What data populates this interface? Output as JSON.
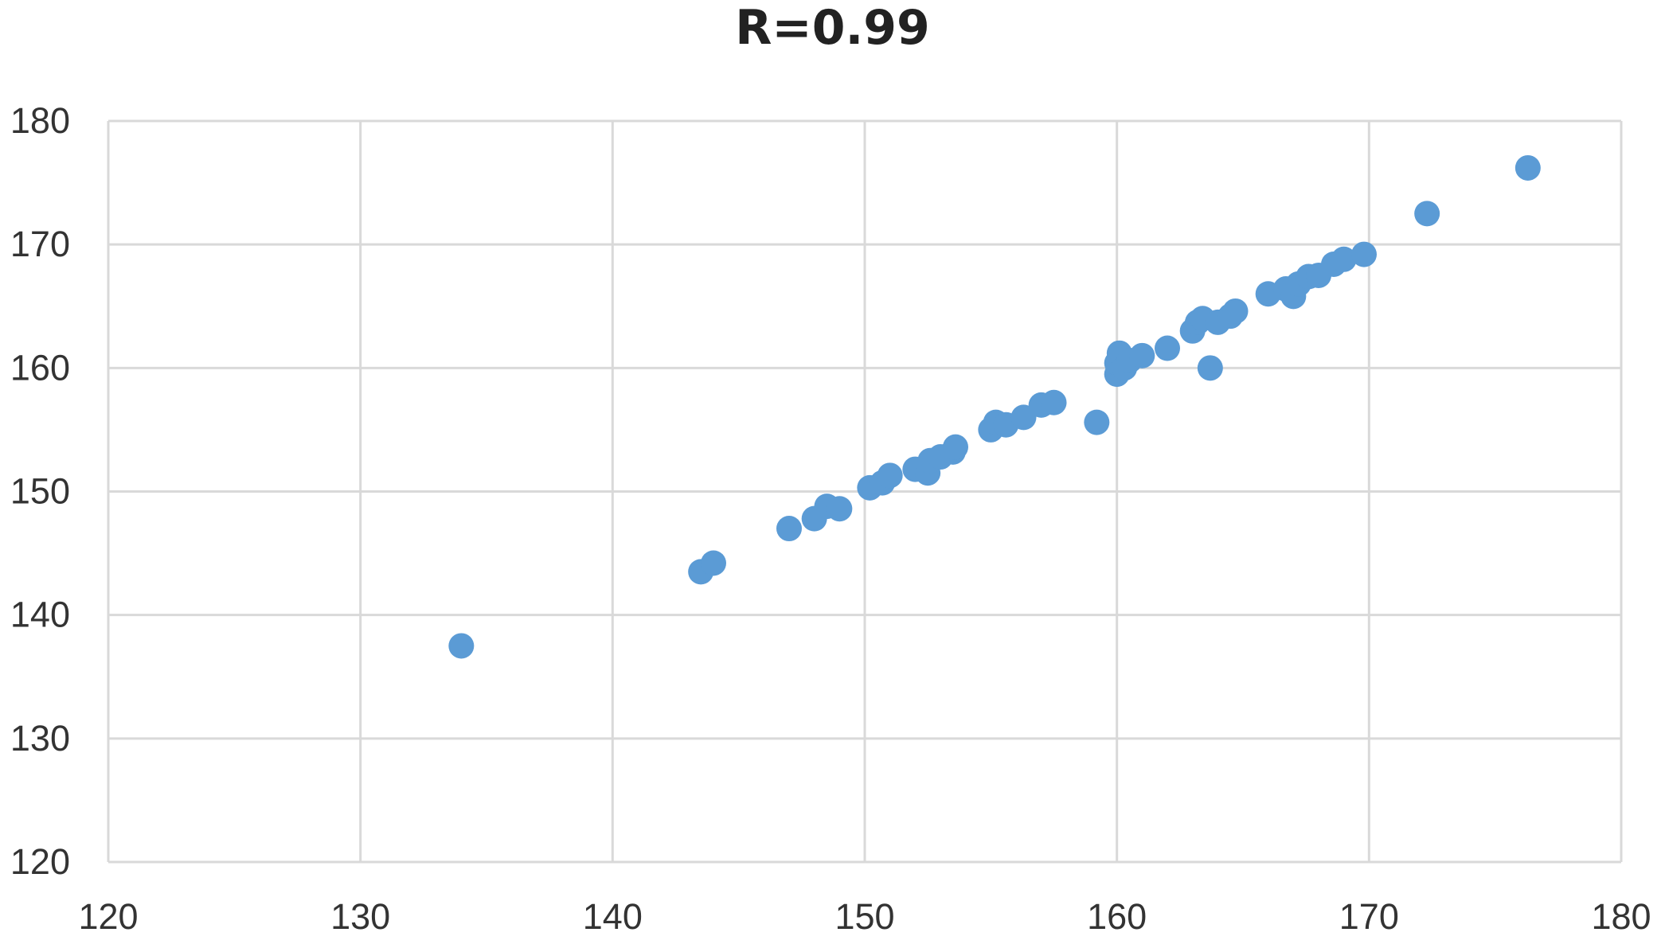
{
  "chart_data": {
    "type": "scatter",
    "title": "R=0.99",
    "xlabel": "",
    "ylabel": "",
    "xlim": [
      120,
      180
    ],
    "ylim": [
      120,
      180
    ],
    "x_ticks": [
      120,
      130,
      140,
      150,
      160,
      170,
      180
    ],
    "y_ticks": [
      120,
      130,
      140,
      150,
      160,
      170,
      180
    ],
    "grid": true,
    "legend": "none",
    "marker_color": "#5B9BD5",
    "grid_color": "#D9D9D9",
    "points": [
      [
        134,
        137.5
      ],
      [
        143.5,
        143.5
      ],
      [
        144,
        144.2
      ],
      [
        147,
        147
      ],
      [
        148,
        147.8
      ],
      [
        148.5,
        148.8
      ],
      [
        149,
        148.6
      ],
      [
        150.2,
        150.3
      ],
      [
        150.7,
        150.7
      ],
      [
        151,
        151.3
      ],
      [
        152,
        151.8
      ],
      [
        152.5,
        151.5
      ],
      [
        152.6,
        152.5
      ],
      [
        153,
        152.8
      ],
      [
        153.5,
        153.2
      ],
      [
        153.6,
        153.6
      ],
      [
        155,
        155
      ],
      [
        155.2,
        155.6
      ],
      [
        155.6,
        155.4
      ],
      [
        156.3,
        156
      ],
      [
        157,
        157
      ],
      [
        157.5,
        157.2
      ],
      [
        159.2,
        155.6
      ],
      [
        160,
        159.5
      ],
      [
        160,
        160.4
      ],
      [
        160.1,
        161.2
      ],
      [
        160.3,
        160
      ],
      [
        160.5,
        160.6
      ],
      [
        161,
        161
      ],
      [
        162,
        161.6
      ],
      [
        163,
        163
      ],
      [
        163.2,
        163.7
      ],
      [
        163.4,
        164
      ],
      [
        163.7,
        160
      ],
      [
        164,
        163.7
      ],
      [
        164.5,
        164.2
      ],
      [
        164.7,
        164.6
      ],
      [
        166,
        166
      ],
      [
        166.7,
        166.4
      ],
      [
        167,
        165.8
      ],
      [
        167.2,
        166.8
      ],
      [
        167.6,
        167.4
      ],
      [
        168,
        167.5
      ],
      [
        168.6,
        168.4
      ],
      [
        169,
        168.8
      ],
      [
        169.8,
        169.2
      ],
      [
        172.3,
        172.5
      ],
      [
        176.3,
        176.2
      ]
    ]
  }
}
